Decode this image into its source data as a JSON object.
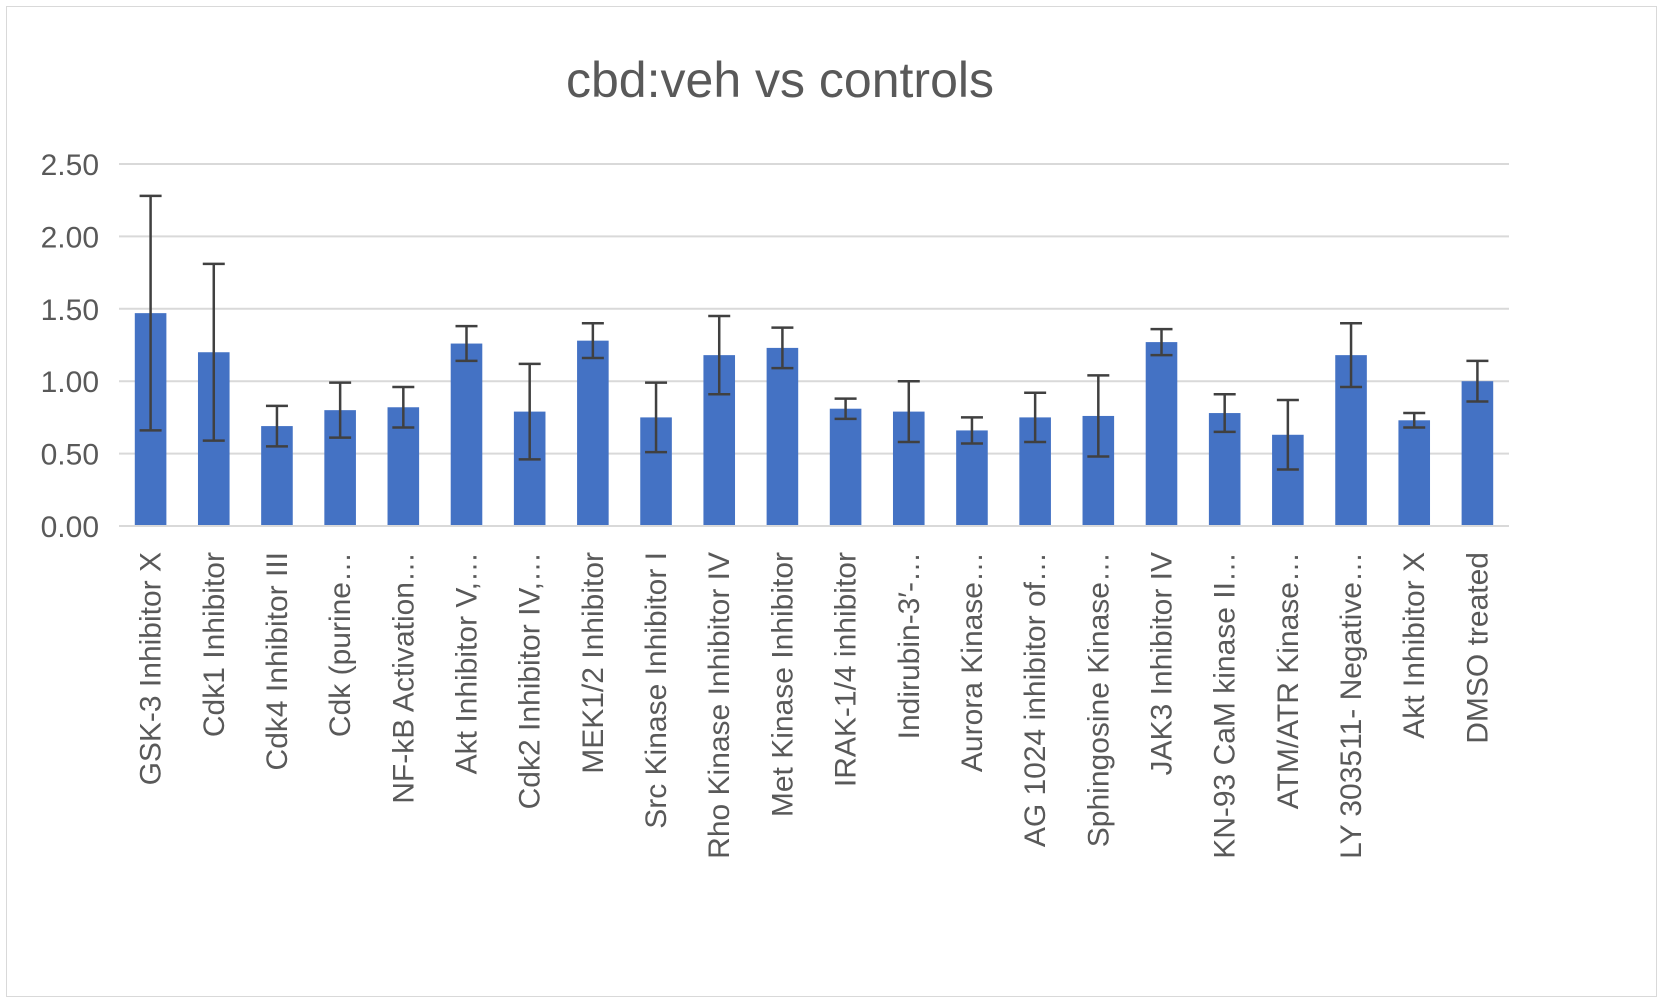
{
  "chart_data": {
    "type": "bar",
    "title": "cbd:veh vs controls",
    "xlabel": "",
    "ylabel": "",
    "ylim": [
      0,
      2.5
    ],
    "yticks": [
      "0.00",
      "0.50",
      "1.00",
      "1.50",
      "2.00",
      "2.50"
    ],
    "grid": true,
    "legend": "none",
    "bar_color": "#4472c4",
    "errorbar_color": "#404040",
    "categories": [
      "GSK-3 Inhibitor X",
      "Cdk1 Inhibitor",
      "Cdk4 Inhibitor III",
      "Cdk (purine…",
      "NF-kB Activation…",
      "Akt Inhibitor V,…",
      "Cdk2 Inhibitor IV,…",
      "MEK1/2 Inhibitor",
      "Src Kinase Inhibitor I",
      "Rho Kinase Inhibitor IV",
      "Met Kinase Inhibitor",
      "IRAK-1/4 inhibitor",
      "Indirubin-3′-…",
      "Aurora Kinase…",
      "AG 1024 inhibitor of…",
      "Sphingosine Kinase…",
      "JAK3 Inhibitor IV",
      "KN-93 CaM kinase II…",
      "ATM/ATR Kinase…",
      "LY 303511- Negative…",
      "Akt Inhibitor X",
      "DMSO treated"
    ],
    "values": [
      1.47,
      1.2,
      0.69,
      0.8,
      0.82,
      1.26,
      0.79,
      1.28,
      0.75,
      1.18,
      1.23,
      0.81,
      0.79,
      0.66,
      0.75,
      0.76,
      1.27,
      0.78,
      0.63,
      1.18,
      0.73,
      1.0
    ],
    "errors": [
      0.81,
      0.61,
      0.14,
      0.19,
      0.14,
      0.12,
      0.33,
      0.12,
      0.24,
      0.27,
      0.14,
      0.07,
      0.21,
      0.09,
      0.17,
      0.28,
      0.09,
      0.13,
      0.24,
      0.22,
      0.05,
      0.14
    ]
  }
}
